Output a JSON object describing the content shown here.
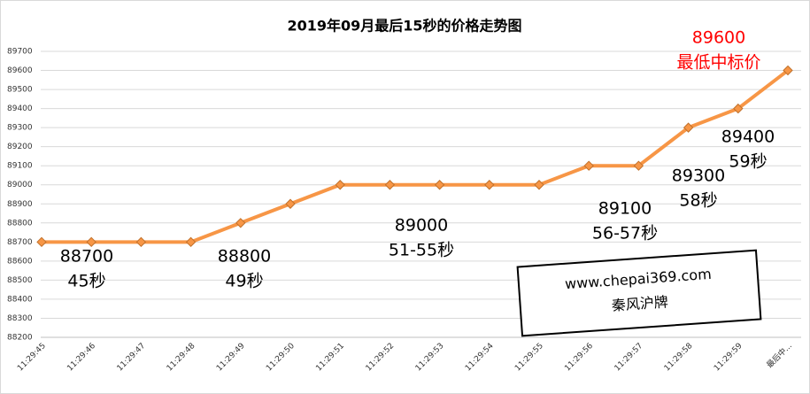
{
  "chart_data": {
    "type": "line",
    "title": "2019年09月最后15秒的价格走势图",
    "categories": [
      "11:29:45",
      "11:29:46",
      "11:29:47",
      "11:29:48",
      "11:29:49",
      "11:29:50",
      "11:29:51",
      "11:29:52",
      "11:29:53",
      "11:29:54",
      "11:29:55",
      "11:29:56",
      "11:29:57",
      "11:29:58",
      "11:29:59",
      "最后中..."
    ],
    "values": [
      88700,
      88700,
      88700,
      88700,
      88800,
      88900,
      89000,
      89000,
      89000,
      89000,
      89000,
      89100,
      89100,
      89300,
      89400,
      89600
    ],
    "color": "#f79646",
    "ylim": [
      88200,
      89700
    ],
    "yticks": [
      88200,
      88300,
      88400,
      88500,
      88600,
      88700,
      88800,
      88900,
      89000,
      89100,
      89200,
      89300,
      89400,
      89500,
      89600,
      89700
    ],
    "grid": true,
    "annotations": [
      {
        "lines": [
          "88700",
          "45秒"
        ],
        "color": "#000000"
      },
      {
        "lines": [
          "88800",
          "49秒"
        ],
        "color": "#000000"
      },
      {
        "lines": [
          "89000",
          "51-55秒"
        ],
        "color": "#000000"
      },
      {
        "lines": [
          "89100",
          "56-57秒"
        ],
        "color": "#000000"
      },
      {
        "lines": [
          "89300",
          "58秒"
        ],
        "color": "#000000"
      },
      {
        "lines": [
          "89400",
          "59秒"
        ],
        "color": "#000000"
      },
      {
        "lines": [
          "89600",
          "最低中标价"
        ],
        "color": "#ff0000"
      }
    ],
    "watermark": [
      "www.chepai369.com",
      "秦风沪牌"
    ]
  }
}
